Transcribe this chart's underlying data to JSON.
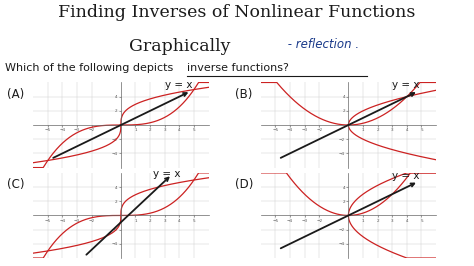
{
  "title_line1": "Finding Inverses of Nonlinear Functions",
  "title_line2": "Graphically",
  "handwritten_note": " - reflection .",
  "question_part1": "Which of the following depicts ",
  "question_part2": "inverse functions?",
  "bg_color": "#ffffff",
  "grid_color": "#c8c8c8",
  "curve_color": "#cc2222",
  "line_color": "#1a1a1a",
  "note_color": "#1a3a8a",
  "title_fontsize": 12.5,
  "subtitle_fontsize": 12.5,
  "note_fontsize": 8.5,
  "question_fontsize": 8.0,
  "label_fontsize": 8.5,
  "yx_fontsize": 7.5,
  "yx_label": "y = x"
}
